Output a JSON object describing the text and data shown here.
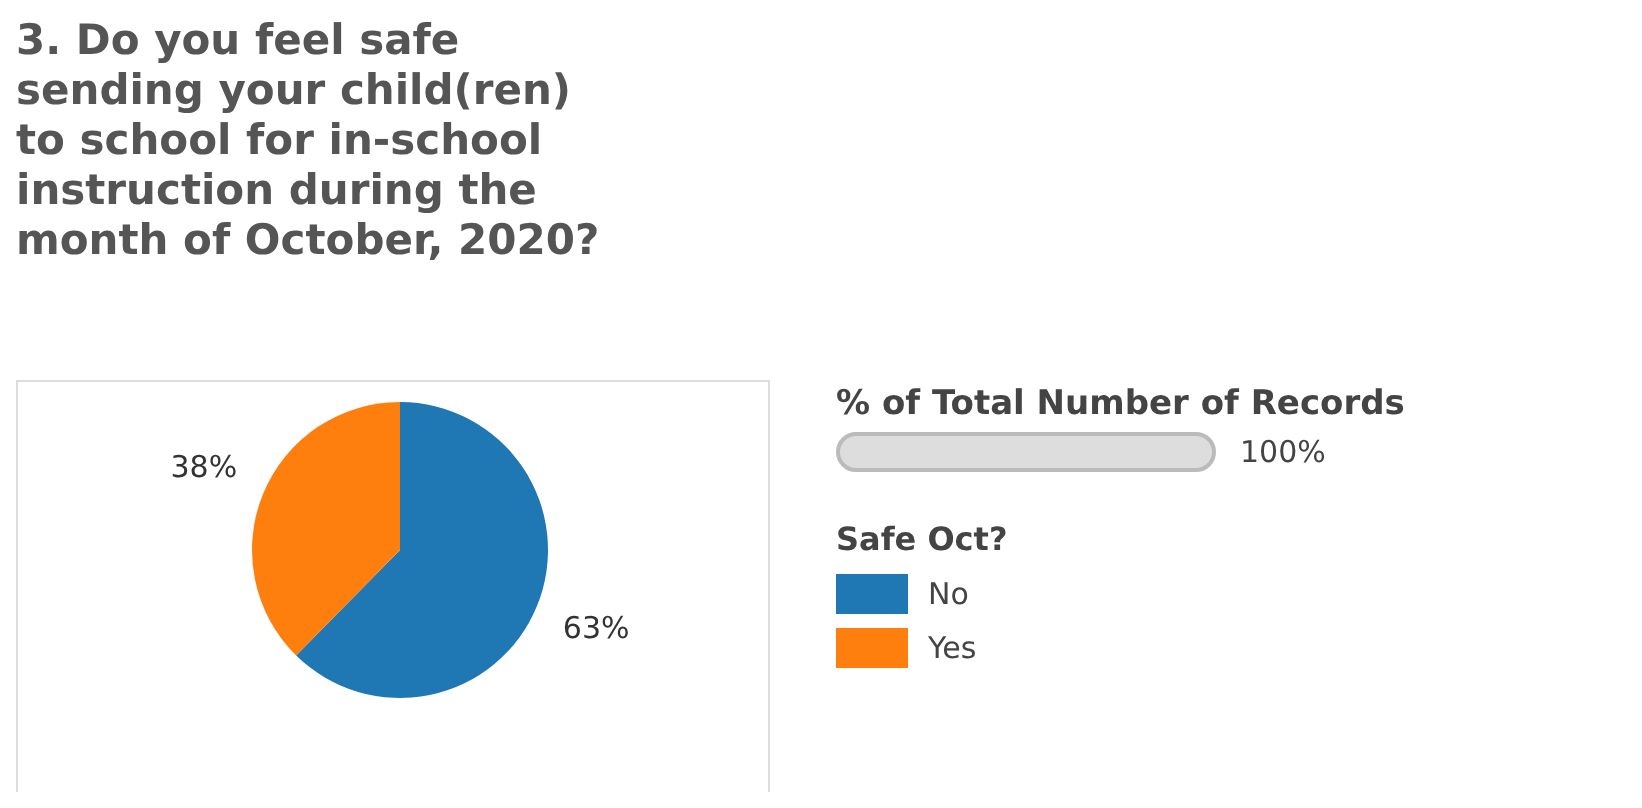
{
  "chart_data": {
    "type": "pie",
    "title": "3. Do you feel safe sending your child(ren) to school for in-school instruction during the month of October, 2020?",
    "categories": [
      "No",
      "Yes"
    ],
    "values": [
      63,
      38
    ],
    "colors": [
      "#1f77b4",
      "#ff7f0e"
    ],
    "value_labels": [
      "63%",
      "38%"
    ],
    "legend": "right",
    "legend_title": "Safe Oct?",
    "annotations": [
      "% of Total Number of Records",
      "100%"
    ]
  }
}
